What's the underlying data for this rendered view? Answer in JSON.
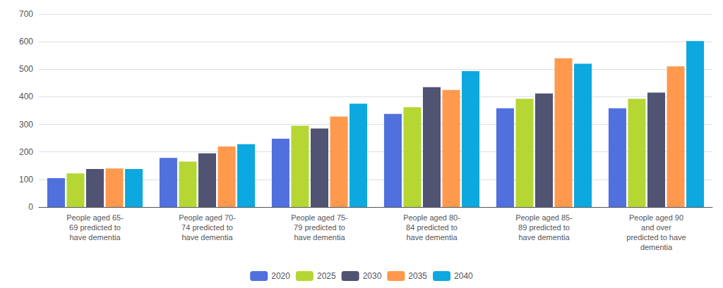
{
  "chart_data": {
    "type": "bar",
    "categories": [
      "People aged 65-\n69 predicted to\nhave dementia",
      "People aged 70-\n74 predicted to\nhave dementia",
      "People aged 75-\n79 predicted to\nhave dementia",
      "People aged 80-\n84 predicted to\nhave dementia",
      "People aged 85-\n89 predicted to\nhave dementia",
      "People aged 90\nand over\npredicted to have\ndementia"
    ],
    "series": [
      {
        "name": "2020",
        "values": [
          105,
          178,
          248,
          338,
          358,
          358
        ]
      },
      {
        "name": "2025",
        "values": [
          122,
          165,
          295,
          362,
          393,
          393
        ]
      },
      {
        "name": "2030",
        "values": [
          138,
          195,
          285,
          435,
          412,
          415
        ]
      },
      {
        "name": "2035",
        "values": [
          140,
          220,
          328,
          425,
          540,
          510
        ]
      },
      {
        "name": "2040",
        "values": [
          138,
          228,
          375,
          493,
          520,
          602
        ]
      }
    ],
    "ylim": [
      0,
      700
    ],
    "yticks": [
      0,
      100,
      200,
      300,
      400,
      500,
      600,
      700
    ],
    "grid": true,
    "legend": "bottom"
  }
}
